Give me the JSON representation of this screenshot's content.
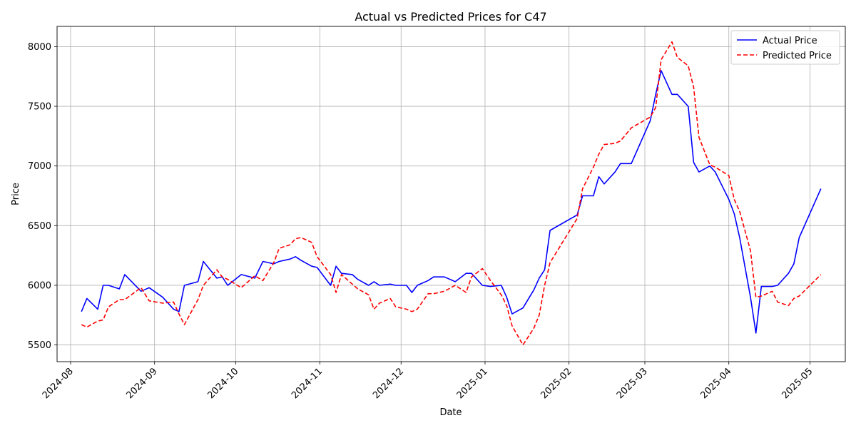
{
  "chart_data": {
    "type": "line",
    "title": "Actual vs Predicted Prices for C47",
    "xlabel": "Date",
    "ylabel": "Price",
    "x_axis": {
      "kind": "date",
      "range": [
        "2024-07-27",
        "2025-05-14"
      ],
      "ticks": [
        "2024-08-01",
        "2024-09-01",
        "2024-10-01",
        "2024-11-01",
        "2024-12-01",
        "2025-01-01",
        "2025-02-01",
        "2025-03-01",
        "2025-04-01",
        "2025-05-01"
      ],
      "tick_labels": [
        "2024-08",
        "2024-09",
        "2024-10",
        "2024-11",
        "2024-12",
        "2025-01",
        "2025-02",
        "2025-03",
        "2025-04",
        "2025-05"
      ],
      "tick_rotation": 45
    },
    "y_axis": {
      "range": [
        5360,
        8170
      ],
      "ticks": [
        5500,
        6000,
        6500,
        7000,
        7500,
        8000
      ],
      "tick_labels": [
        "5500",
        "6000",
        "6500",
        "7000",
        "7500",
        "8000"
      ]
    },
    "grid": true,
    "legend_position": "top-right",
    "series": [
      {
        "name": "Actual Price",
        "color": "#0000ff",
        "style": "solid",
        "points": [
          [
            "2024-08-05",
            5780
          ],
          [
            "2024-08-07",
            5890
          ],
          [
            "2024-08-11",
            5800
          ],
          [
            "2024-08-13",
            6000
          ],
          [
            "2024-08-15",
            6000
          ],
          [
            "2024-08-19",
            5970
          ],
          [
            "2024-08-21",
            6090
          ],
          [
            "2024-08-27",
            5950
          ],
          [
            "2024-08-30",
            5980
          ],
          [
            "2024-09-04",
            5900
          ],
          [
            "2024-09-08",
            5800
          ],
          [
            "2024-09-10",
            5780
          ],
          [
            "2024-09-12",
            6000
          ],
          [
            "2024-09-17",
            6030
          ],
          [
            "2024-09-19",
            6200
          ],
          [
            "2024-09-24",
            6060
          ],
          [
            "2024-09-26",
            6070
          ],
          [
            "2024-09-28",
            6000
          ],
          [
            "2024-10-03",
            6090
          ],
          [
            "2024-10-08",
            6060
          ],
          [
            "2024-10-11",
            6200
          ],
          [
            "2024-10-15",
            6180
          ],
          [
            "2024-10-17",
            6200
          ],
          [
            "2024-10-21",
            6220
          ],
          [
            "2024-10-23",
            6240
          ],
          [
            "2024-10-25",
            6210
          ],
          [
            "2024-10-29",
            6160
          ],
          [
            "2024-10-31",
            6150
          ],
          [
            "2024-11-05",
            6000
          ],
          [
            "2024-11-07",
            6160
          ],
          [
            "2024-11-09",
            6100
          ],
          [
            "2024-11-13",
            6090
          ],
          [
            "2024-11-15",
            6050
          ],
          [
            "2024-11-19",
            6000
          ],
          [
            "2024-11-21",
            6030
          ],
          [
            "2024-11-23",
            6000
          ],
          [
            "2024-11-27",
            6010
          ],
          [
            "2024-11-29",
            6000
          ],
          [
            "2024-12-03",
            6000
          ],
          [
            "2024-12-05",
            5940
          ],
          [
            "2024-12-07",
            6000
          ],
          [
            "2024-12-11",
            6040
          ],
          [
            "2024-12-13",
            6070
          ],
          [
            "2024-12-17",
            6070
          ],
          [
            "2024-12-21",
            6030
          ],
          [
            "2024-12-25",
            6100
          ],
          [
            "2024-12-27",
            6100
          ],
          [
            "2024-12-31",
            6000
          ],
          [
            "2025-01-03",
            5990
          ],
          [
            "2025-01-07",
            6000
          ],
          [
            "2025-01-09",
            5900
          ],
          [
            "2025-01-11",
            5760
          ],
          [
            "2025-01-15",
            5810
          ],
          [
            "2025-01-19",
            5960
          ],
          [
            "2025-01-21",
            6060
          ],
          [
            "2025-01-23",
            6130
          ],
          [
            "2025-01-25",
            6460
          ],
          [
            "2025-02-04",
            6590
          ],
          [
            "2025-02-06",
            6750
          ],
          [
            "2025-02-10",
            6750
          ],
          [
            "2025-02-12",
            6910
          ],
          [
            "2025-02-14",
            6850
          ],
          [
            "2025-02-18",
            6950
          ],
          [
            "2025-02-20",
            7020
          ],
          [
            "2025-02-24",
            7020
          ],
          [
            "2025-03-03",
            7380
          ],
          [
            "2025-03-05",
            7600
          ],
          [
            "2025-03-07",
            7800
          ],
          [
            "2025-03-11",
            7600
          ],
          [
            "2025-03-13",
            7600
          ],
          [
            "2025-03-17",
            7500
          ],
          [
            "2025-03-19",
            7030
          ],
          [
            "2025-03-21",
            6950
          ],
          [
            "2025-03-25",
            7000
          ],
          [
            "2025-03-27",
            6950
          ],
          [
            "2025-04-01",
            6720
          ],
          [
            "2025-04-03",
            6600
          ],
          [
            "2025-04-05",
            6400
          ],
          [
            "2025-04-09",
            5900
          ],
          [
            "2025-04-11",
            5600
          ],
          [
            "2025-04-13",
            5990
          ],
          [
            "2025-04-17",
            5990
          ],
          [
            "2025-04-19",
            6000
          ],
          [
            "2025-04-23",
            6100
          ],
          [
            "2025-04-25",
            6180
          ],
          [
            "2025-04-27",
            6400
          ],
          [
            "2025-05-05",
            6810
          ]
        ]
      },
      {
        "name": "Predicted Price",
        "color": "#ff0000",
        "style": "dashed",
        "points": [
          [
            "2024-08-05",
            5670
          ],
          [
            "2024-08-07",
            5650
          ],
          [
            "2024-08-11",
            5700
          ],
          [
            "2024-08-13",
            5710
          ],
          [
            "2024-08-15",
            5820
          ],
          [
            "2024-08-19",
            5880
          ],
          [
            "2024-08-21",
            5880
          ],
          [
            "2024-08-27",
            5980
          ],
          [
            "2024-08-30",
            5870
          ],
          [
            "2024-09-04",
            5850
          ],
          [
            "2024-09-08",
            5860
          ],
          [
            "2024-09-10",
            5760
          ],
          [
            "2024-09-12",
            5670
          ],
          [
            "2024-09-17",
            5880
          ],
          [
            "2024-09-19",
            6000
          ],
          [
            "2024-09-24",
            6130
          ],
          [
            "2024-09-26",
            6070
          ],
          [
            "2024-09-28",
            6050
          ],
          [
            "2024-10-03",
            5980
          ],
          [
            "2024-10-08",
            6080
          ],
          [
            "2024-10-11",
            6040
          ],
          [
            "2024-10-15",
            6190
          ],
          [
            "2024-10-17",
            6310
          ],
          [
            "2024-10-21",
            6340
          ],
          [
            "2024-10-23",
            6390
          ],
          [
            "2024-10-25",
            6400
          ],
          [
            "2024-10-29",
            6360
          ],
          [
            "2024-10-31",
            6240
          ],
          [
            "2024-11-05",
            6090
          ],
          [
            "2024-11-07",
            5940
          ],
          [
            "2024-11-09",
            6090
          ],
          [
            "2024-11-13",
            6010
          ],
          [
            "2024-11-15",
            5970
          ],
          [
            "2024-11-19",
            5920
          ],
          [
            "2024-11-21",
            5800
          ],
          [
            "2024-11-23",
            5850
          ],
          [
            "2024-11-27",
            5890
          ],
          [
            "2024-11-29",
            5820
          ],
          [
            "2024-12-03",
            5800
          ],
          [
            "2024-12-05",
            5780
          ],
          [
            "2024-12-07",
            5800
          ],
          [
            "2024-12-11",
            5930
          ],
          [
            "2024-12-13",
            5930
          ],
          [
            "2024-12-17",
            5950
          ],
          [
            "2024-12-21",
            6000
          ],
          [
            "2024-12-25",
            5940
          ],
          [
            "2024-12-27",
            6070
          ],
          [
            "2024-12-31",
            6140
          ],
          [
            "2025-01-03",
            6040
          ],
          [
            "2025-01-07",
            5920
          ],
          [
            "2025-01-09",
            5830
          ],
          [
            "2025-01-11",
            5660
          ],
          [
            "2025-01-15",
            5500
          ],
          [
            "2025-01-19",
            5640
          ],
          [
            "2025-01-21",
            5750
          ],
          [
            "2025-01-23",
            6000
          ],
          [
            "2025-01-25",
            6190
          ],
          [
            "2025-02-04",
            6560
          ],
          [
            "2025-02-06",
            6810
          ],
          [
            "2025-02-10",
            6990
          ],
          [
            "2025-02-12",
            7100
          ],
          [
            "2025-02-14",
            7180
          ],
          [
            "2025-02-18",
            7190
          ],
          [
            "2025-02-20",
            7210
          ],
          [
            "2025-02-24",
            7320
          ],
          [
            "2025-03-03",
            7410
          ],
          [
            "2025-03-05",
            7490
          ],
          [
            "2025-03-07",
            7890
          ],
          [
            "2025-03-11",
            8040
          ],
          [
            "2025-03-13",
            7910
          ],
          [
            "2025-03-17",
            7840
          ],
          [
            "2025-03-19",
            7660
          ],
          [
            "2025-03-21",
            7240
          ],
          [
            "2025-03-25",
            7010
          ],
          [
            "2025-03-27",
            6990
          ],
          [
            "2025-04-01",
            6920
          ],
          [
            "2025-04-03",
            6720
          ],
          [
            "2025-04-05",
            6620
          ],
          [
            "2025-04-09",
            6290
          ],
          [
            "2025-04-11",
            5900
          ],
          [
            "2025-04-13",
            5910
          ],
          [
            "2025-04-17",
            5950
          ],
          [
            "2025-04-19",
            5860
          ],
          [
            "2025-04-23",
            5830
          ],
          [
            "2025-04-25",
            5890
          ],
          [
            "2025-04-27",
            5910
          ],
          [
            "2025-05-05",
            6090
          ]
        ]
      }
    ]
  }
}
